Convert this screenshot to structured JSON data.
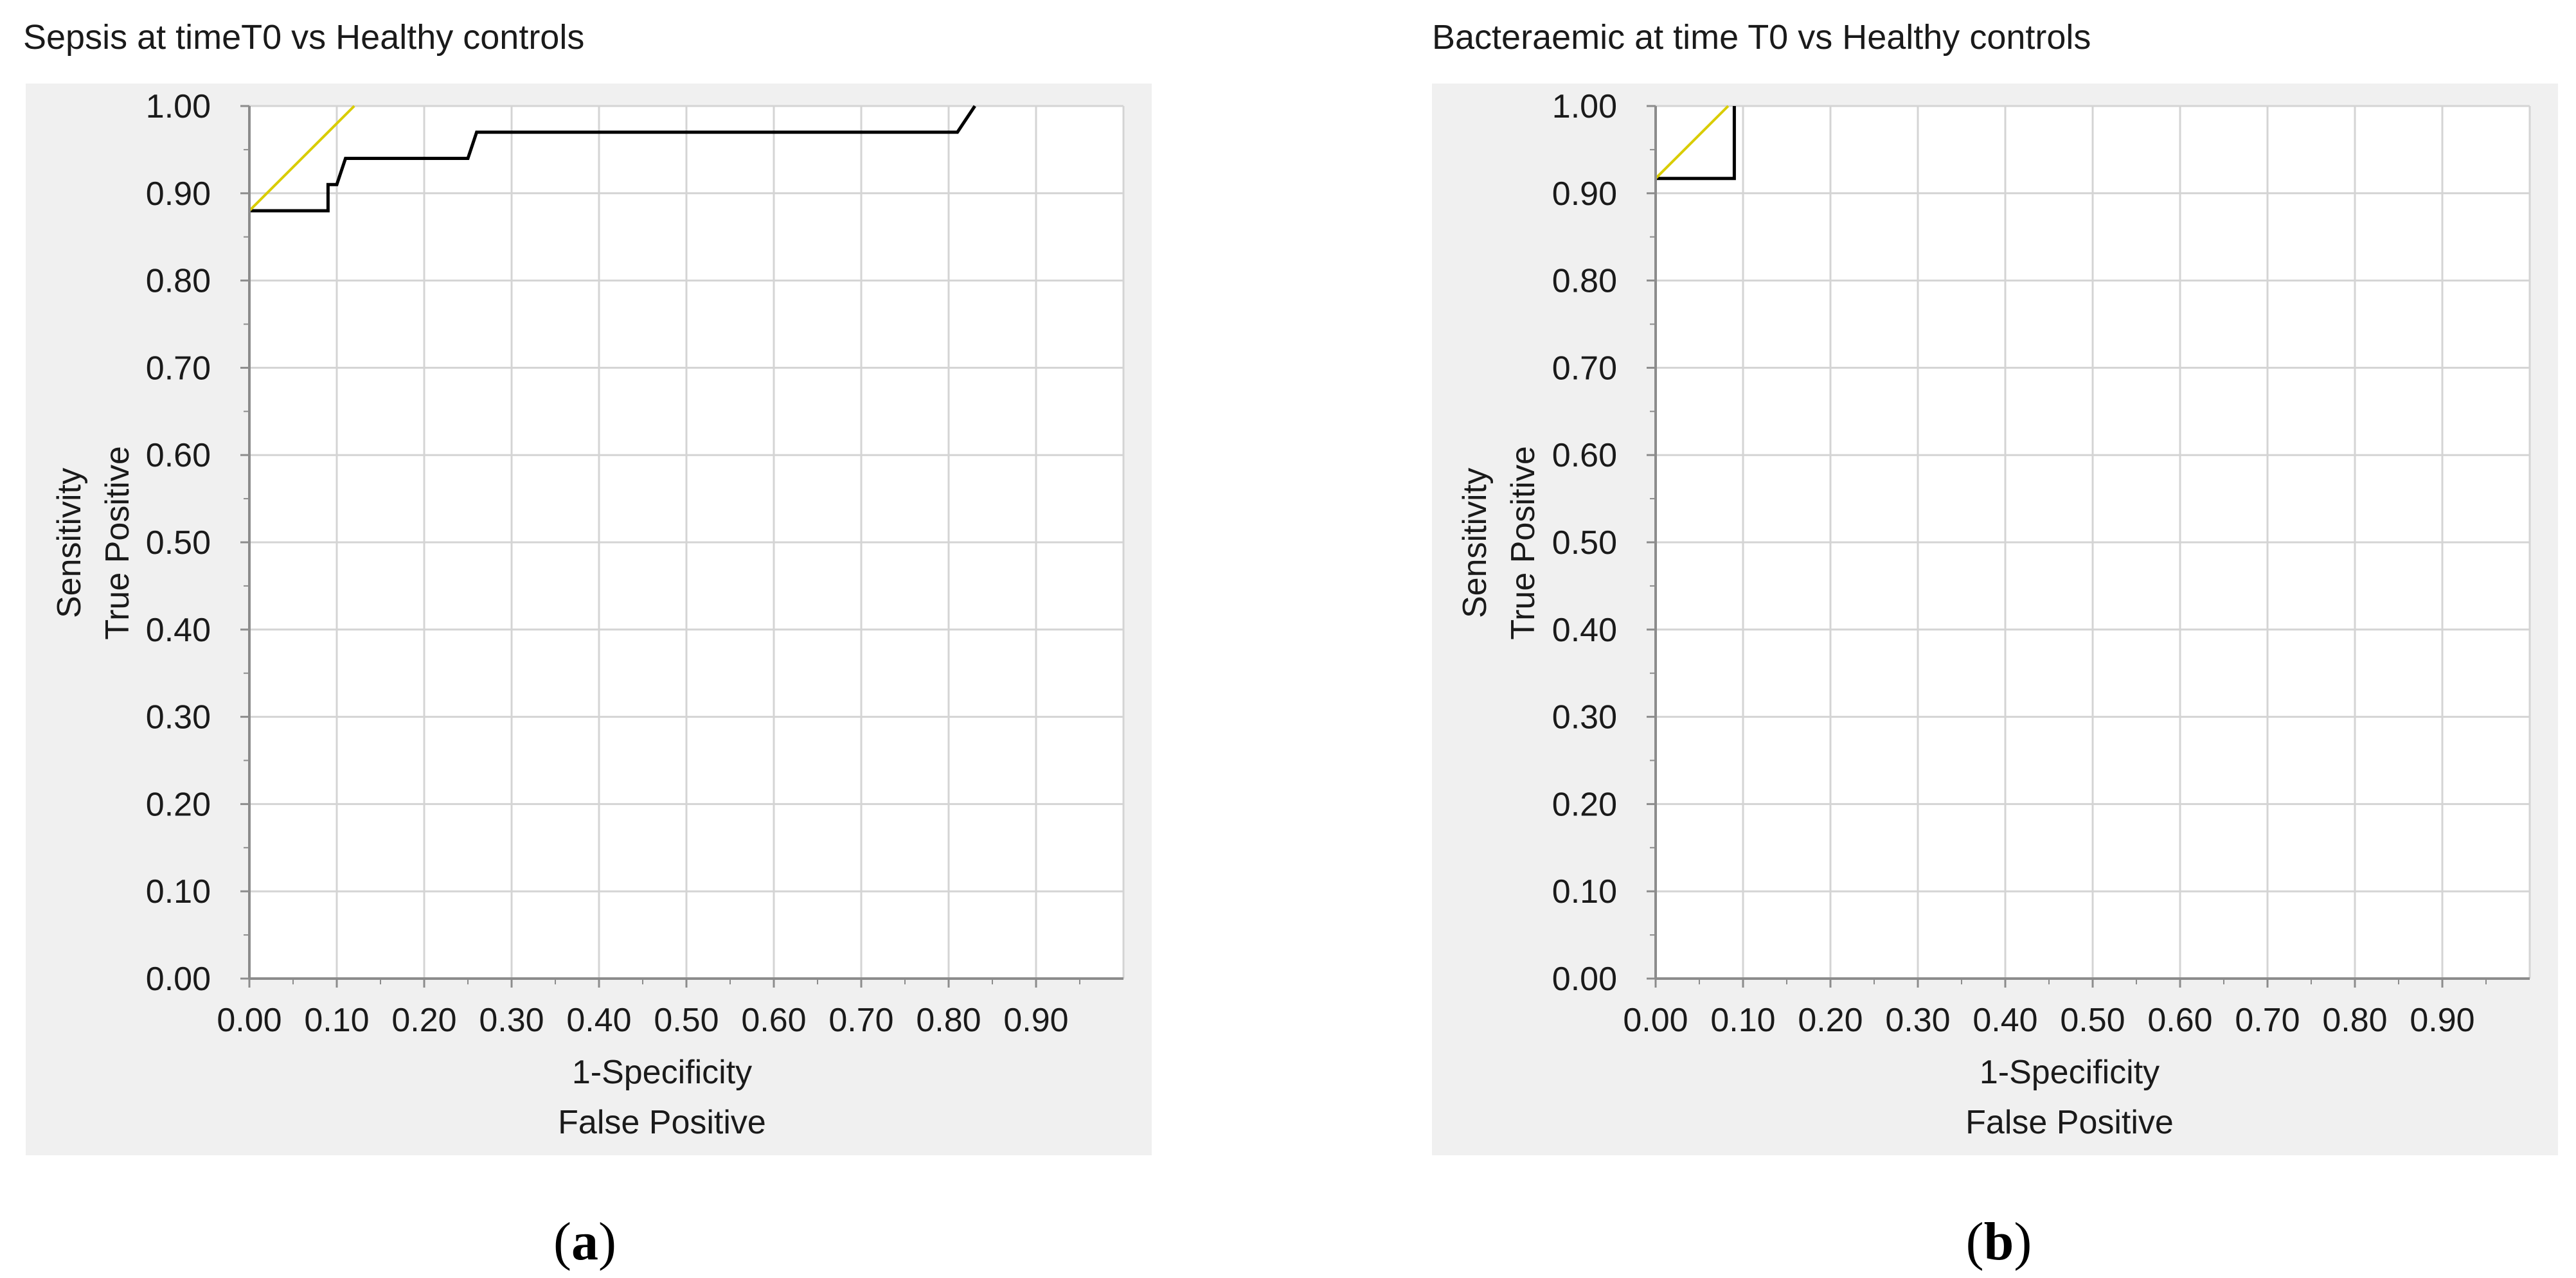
{
  "chart_data": [
    {
      "type": "line",
      "panel_letter": "a",
      "title": "Sepsis at timeT0 vs Healthy controls",
      "xlabel": [
        "1-Specificity",
        "False Positive"
      ],
      "ylabel": [
        "Sensitivity",
        "True Positive"
      ],
      "xlim": [
        0,
        1
      ],
      "ylim": [
        0,
        1
      ],
      "x_ticks": [
        "0.00",
        "0.10",
        "0.20",
        "0.30",
        "0.40",
        "0.50",
        "0.60",
        "0.70",
        "0.80",
        "0.90"
      ],
      "y_ticks": [
        "0.00",
        "0.10",
        "0.20",
        "0.30",
        "0.40",
        "0.50",
        "0.60",
        "0.70",
        "0.80",
        "0.90",
        "1.00"
      ],
      "grid": true,
      "series": [
        {
          "color": "#000000",
          "x": [
            0.0,
            0.09,
            0.09,
            0.1,
            0.11,
            0.11,
            0.25,
            0.26,
            0.26,
            0.81,
            0.83,
            0.83
          ],
          "y": [
            0.88,
            0.88,
            0.91,
            0.91,
            0.94,
            0.94,
            0.94,
            0.97,
            0.97,
            0.97,
            1.0,
            1.0
          ]
        },
        {
          "color": "#d9cc00",
          "x": [
            0.0,
            0.12
          ],
          "y": [
            0.88,
            1.0
          ]
        }
      ]
    },
    {
      "type": "line",
      "panel_letter": "b",
      "title": "Bacteraemic at time T0 vs Healthy controls",
      "xlabel": [
        "1-Specificity",
        "False Positive"
      ],
      "ylabel": [
        "Sensitivity",
        "True Positive"
      ],
      "xlim": [
        0,
        1
      ],
      "ylim": [
        0,
        1
      ],
      "x_ticks": [
        "0.00",
        "0.10",
        "0.20",
        "0.30",
        "0.40",
        "0.50",
        "0.60",
        "0.70",
        "0.80",
        "0.90"
      ],
      "y_ticks": [
        "0.00",
        "0.10",
        "0.20",
        "0.30",
        "0.40",
        "0.50",
        "0.60",
        "0.70",
        "0.80",
        "0.90",
        "1.00"
      ],
      "grid": true,
      "series": [
        {
          "color": "#000000",
          "x": [
            0.0,
            0.09,
            0.09
          ],
          "y": [
            0.917,
            0.917,
            1.0
          ]
        },
        {
          "color": "#d9cc00",
          "x": [
            0.0,
            0.083
          ],
          "y": [
            0.917,
            1.0
          ]
        }
      ]
    }
  ]
}
